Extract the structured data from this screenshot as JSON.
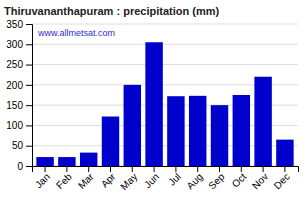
{
  "chart_data": {
    "type": "bar",
    "title": "Thiruvananthapuram : precipitation (mm)",
    "categories": [
      "Jan",
      "Feb",
      "Mar",
      "Apr",
      "May",
      "Jun",
      "Jul",
      "Aug",
      "Sep",
      "Oct",
      "Nov",
      "Dec"
    ],
    "values": [
      22,
      22,
      33,
      122,
      200,
      305,
      172,
      173,
      150,
      175,
      220,
      65
    ],
    "color": "#0000CC",
    "ylim": [
      0,
      350
    ],
    "yticks": [
      0,
      50,
      100,
      150,
      200,
      250,
      300,
      350
    ],
    "grid": true,
    "annotation": "www.allmetsat.com"
  }
}
